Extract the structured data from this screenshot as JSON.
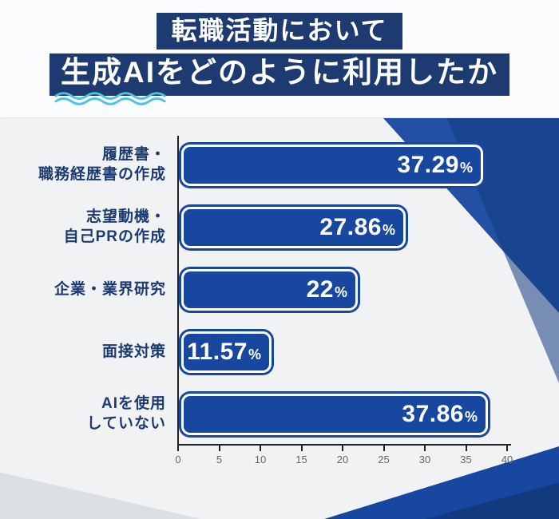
{
  "header": {
    "title_line1": "転職活動において",
    "title_line2": "生成AIをどのように利用したか"
  },
  "colors": {
    "bar": "#17479e",
    "title_bg": "#1d3b70",
    "category_label": "#1d3b70",
    "underline": "#4ec1e8",
    "axis": "#222222",
    "tick_label": "#666666",
    "page_bg": "#f1f2f4",
    "header_bg": "#fafbfc"
  },
  "chart_data": {
    "type": "bar",
    "orientation": "horizontal",
    "title": "転職活動において生成AIをどのように利用したか",
    "categories": [
      "履歴書・職務経歴書の作成",
      "志望動機・自己PRの作成",
      "企業・業界研究",
      "面接対策",
      "AIを使用していない"
    ],
    "values": [
      37.29,
      27.86,
      22,
      11.57,
      37.86
    ],
    "unit": "%",
    "xlabel": "",
    "ylabel": "",
    "xlim": [
      0,
      40
    ],
    "xticks": [
      0,
      5,
      10,
      15,
      20,
      25,
      30,
      35,
      40
    ],
    "grid": false,
    "legend": false,
    "bars": [
      {
        "label_lines": [
          "履歴書・",
          "職務経歴書の作成"
        ],
        "value": 37.29,
        "display": "37.29"
      },
      {
        "label_lines": [
          "志望動機・",
          "自己PRの作成"
        ],
        "value": 27.86,
        "display": "27.86"
      },
      {
        "label_lines": [
          "企業・業界研究"
        ],
        "value": 22,
        "display": "22"
      },
      {
        "label_lines": [
          "面接対策"
        ],
        "value": 11.57,
        "display": "11.57"
      },
      {
        "label_lines": [
          "AIを使用",
          "していない"
        ],
        "value": 37.86,
        "display": "37.86"
      }
    ]
  }
}
